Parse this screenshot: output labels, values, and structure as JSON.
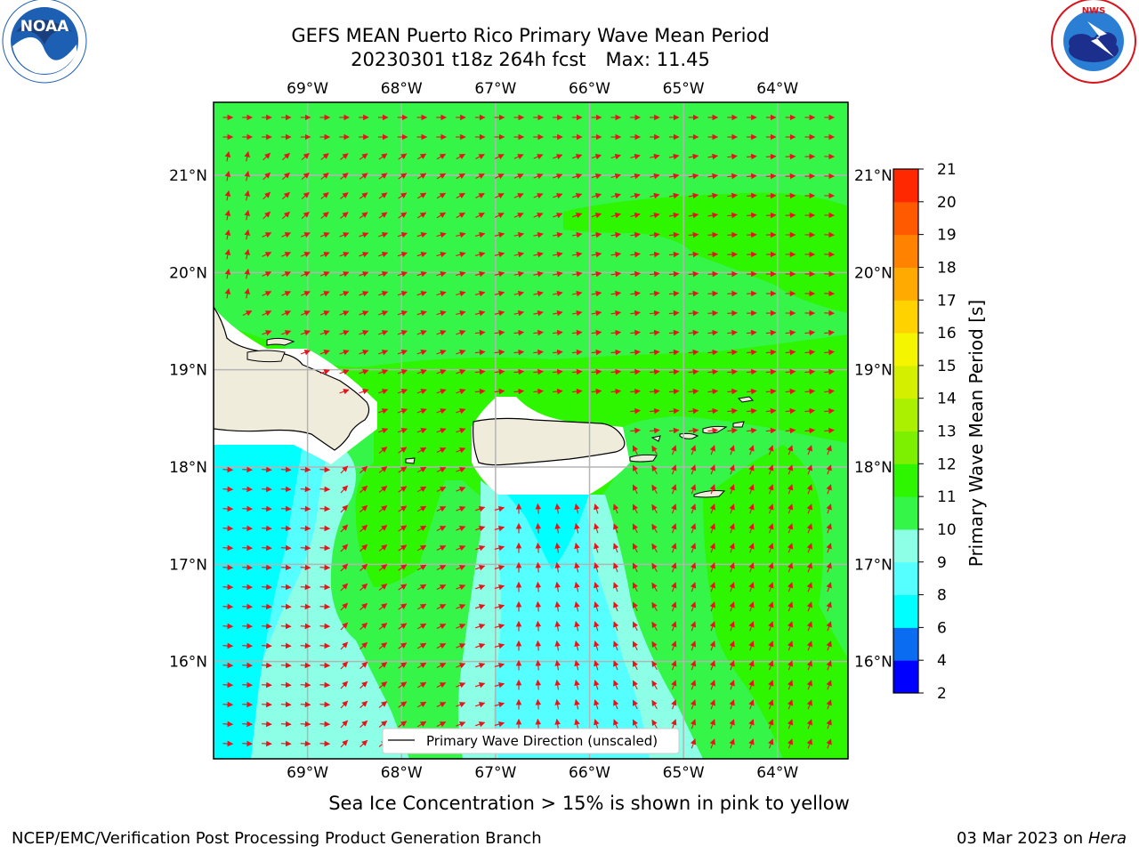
{
  "header": {
    "title_line1": "GEFS MEAN Puerto Rico Primary Wave Mean Period",
    "title_date": "20230301 t18z 264h fcst",
    "title_max": "Max: 11.45"
  },
  "logos": {
    "left": {
      "icon": "noaa-logo-icon",
      "text": "NOAA",
      "ring_text": "NATIONAL OCEANIC AND ATMOSPHERIC ADMINISTRATION · U.S. DEPARTMENT OF COMMERCE",
      "color": "#1d5fb2"
    },
    "right": {
      "icon": "nws-logo-icon",
      "ring_text": "NATIONAL WEATHER SERVICE",
      "color": "#d8131b"
    }
  },
  "map": {
    "lon_ticks": [
      "69°W",
      "68°W",
      "67°W",
      "66°W",
      "65°W",
      "64°W"
    ],
    "lon_values": [
      -69,
      -68,
      -67,
      -66,
      -65,
      -64
    ],
    "lat_ticks": [
      "21°N",
      "20°N",
      "19°N",
      "18°N",
      "17°N",
      "16°N"
    ],
    "lat_values": [
      21,
      20,
      19,
      18,
      17,
      16
    ],
    "lon_range": [
      -70,
      -63.25
    ],
    "lat_range": [
      15,
      21.75
    ],
    "land_color": "#efecdc",
    "arrow_color": "#e8141c",
    "legend_label": "Primary Wave Direction (unscaled)"
  },
  "colorbar": {
    "label": "Primary Wave Mean Period [s]",
    "tick_labels": [
      "2",
      "4",
      "6",
      "8",
      "9",
      "10",
      "11",
      "12",
      "13",
      "14",
      "15",
      "16",
      "17",
      "18",
      "19",
      "20",
      "21"
    ],
    "colors": [
      "#0000ff",
      "#0a6cf0",
      "#00ffff",
      "#55ffff",
      "#8cffe6",
      "#34f548",
      "#2ef500",
      "#7cf000",
      "#aaf000",
      "#d4f000",
      "#f5f500",
      "#ffd200",
      "#ffaa00",
      "#ff8200",
      "#ff5a00",
      "#ff2800",
      "#ff0000"
    ]
  },
  "footer": {
    "ice_note": "Sea Ice Concentration > 15% is shown in pink to yellow",
    "left": "NCEP/EMC/Verification Post Processing Product Generation Branch",
    "date": "03 Mar 2023 on",
    "machine": "Hera"
  }
}
